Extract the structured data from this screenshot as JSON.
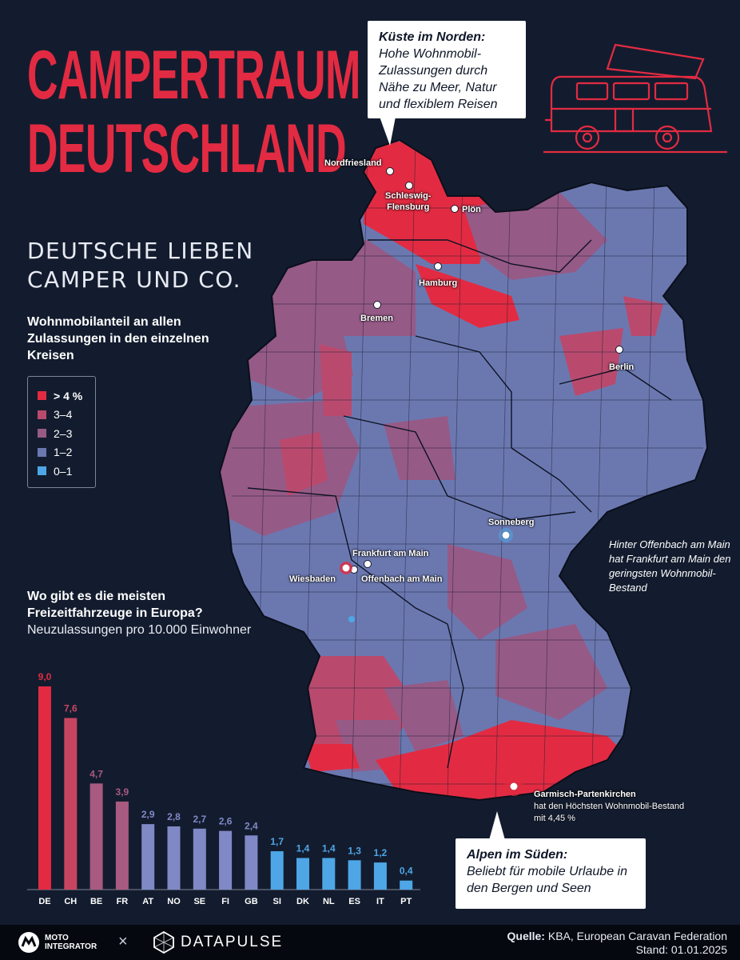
{
  "header": {
    "title_line1": "CAMPERTRAUM",
    "title_line2": "DEUTSCHLAND",
    "subtitle_line1": "DEUTSCHE LIEBEN",
    "subtitle_line2": "CAMPER UND CO."
  },
  "colors": {
    "background": "#131c2e",
    "accent": "#e22b42",
    "gt4": "#e22b42",
    "3to4": "#b94a6e",
    "2to3": "#965a87",
    "1to2": "#6b78b0",
    "0to1": "#4ea6e6"
  },
  "legend": {
    "heading": "Wohnmobilanteil an allen Zulassungen in den einzelnen Kreisen",
    "items": [
      {
        "label": "> 4 %",
        "color": "#e22b42"
      },
      {
        "label": "3–4",
        "color": "#b94a6e"
      },
      {
        "label": "2–3",
        "color": "#965a87"
      },
      {
        "label": "1–2",
        "color": "#6b78b0"
      },
      {
        "label": "0–1",
        "color": "#4ea6e6"
      }
    ]
  },
  "callouts": {
    "north": {
      "heading": "Küste im Norden:",
      "text": "Hohe Wohnmobil-Zulassungen durch Nähe zu Meer, Natur und flexiblem Reisen"
    },
    "south": {
      "heading": "Alpen im Süden:",
      "text": "Beliebt für mobile Urlaube in den Bergen und Seen"
    }
  },
  "map": {
    "cities": {
      "nordfriesland": "Nordfriesland",
      "schleswig_flensburg": "Schleswig-\nFlensburg",
      "ploen": "Plön",
      "hamburg": "Hamburg",
      "bremen": "Bremen",
      "berlin": "Berlin",
      "sonneberg": "Sonneberg",
      "frankfurt": "Frankfurt am Main",
      "wiesbaden": "Wiesbaden",
      "offenbach": "Offenbach am Main",
      "garmisch": "Garmisch-Partenkirchen"
    },
    "garmisch_note": "hat den Höchsten Wohnmobil-Bestand mit 4,45 %",
    "frankfurt_note": "Hinter Offenbach am Main hat  Frankfurt am Main den  geringsten Wohnmobil-Bestand"
  },
  "chart_data": {
    "type": "bar",
    "title": "Wo gibt es die meisten Freizeitfahrzeuge in Europa?",
    "subtitle": "Neuzulassungen pro 10.000 Einwohner",
    "categories": [
      "DE",
      "CH",
      "BE",
      "FR",
      "AT",
      "NO",
      "SE",
      "FI",
      "GB",
      "SI",
      "DK",
      "NL",
      "ES",
      "IT",
      "PT"
    ],
    "labels": [
      "9,0",
      "7,6",
      "4,7",
      "3,9",
      "2,9",
      "2,8",
      "2,7",
      "2,6",
      "2,4",
      "1,7",
      "1,4",
      "1,4",
      "1,3",
      "1,2",
      "0,4"
    ],
    "values": [
      9.0,
      7.6,
      4.7,
      3.9,
      2.9,
      2.8,
      2.7,
      2.6,
      2.4,
      1.7,
      1.4,
      1.4,
      1.3,
      1.2,
      0.4
    ],
    "bar_colors": [
      "#e22b42",
      "#c84561",
      "#a85a80",
      "#a85a80",
      "#8089c6",
      "#8089c6",
      "#8089c6",
      "#8089c6",
      "#8089c6",
      "#4ea6e6",
      "#4ea6e6",
      "#4ea6e6",
      "#4ea6e6",
      "#4ea6e6",
      "#4ea6e6"
    ],
    "ylim": [
      0,
      9.0
    ]
  },
  "footer": {
    "brand1": "MOTO\nINTEGRATOR",
    "separator": "×",
    "brand2": "DATAPULSE",
    "source_label": "Quelle:",
    "source_text": "KBA, European Caravan Federation",
    "date": "Stand: 01.01.2025"
  }
}
